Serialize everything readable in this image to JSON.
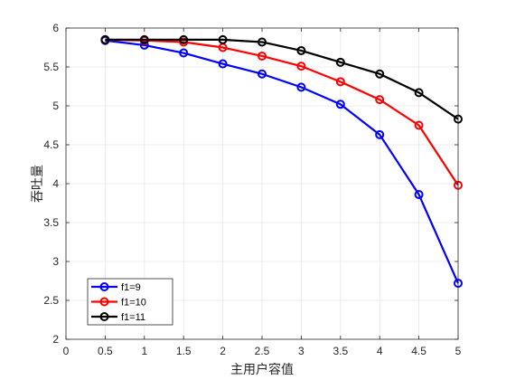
{
  "chart_data": {
    "type": "line",
    "title": "",
    "xlabel": "主用户容值",
    "ylabel": "吞吐量",
    "xlim": [
      0,
      5
    ],
    "ylim": [
      2,
      6
    ],
    "xticks": [
      0,
      0.5,
      1,
      1.5,
      2,
      2.5,
      3,
      3.5,
      4,
      4.5,
      5
    ],
    "xtick_labels": [
      "0",
      "0.5",
      "1",
      "1.5",
      "2",
      "2.5",
      "3",
      "3.5",
      "4",
      "4.5",
      "5"
    ],
    "yticks": [
      2,
      2.5,
      3,
      3.5,
      4,
      4.5,
      5,
      5.5,
      6
    ],
    "ytick_labels": [
      "2",
      "2.5",
      "3",
      "3.5",
      "4",
      "4.5",
      "5",
      "5.5",
      "6"
    ],
    "grid": true,
    "legend_position": "bottom-left",
    "x": [
      0.5,
      1,
      1.5,
      2,
      2.5,
      3,
      3.5,
      4,
      4.5,
      5
    ],
    "series": [
      {
        "name": "f1=9",
        "color": "#0000ff",
        "marker": "circle",
        "values": [
          5.84,
          5.78,
          5.68,
          5.54,
          5.41,
          5.24,
          5.02,
          4.63,
          3.86,
          2.72
        ]
      },
      {
        "name": "f1=10",
        "color": "#ff0000",
        "marker": "circle",
        "values": [
          5.85,
          5.84,
          5.82,
          5.75,
          5.64,
          5.51,
          5.31,
          5.08,
          4.75,
          3.98
        ]
      },
      {
        "name": "f1=11",
        "color": "#000000",
        "marker": "circle",
        "values": [
          5.85,
          5.85,
          5.85,
          5.85,
          5.82,
          5.71,
          5.56,
          5.41,
          5.17,
          4.83
        ]
      }
    ]
  }
}
